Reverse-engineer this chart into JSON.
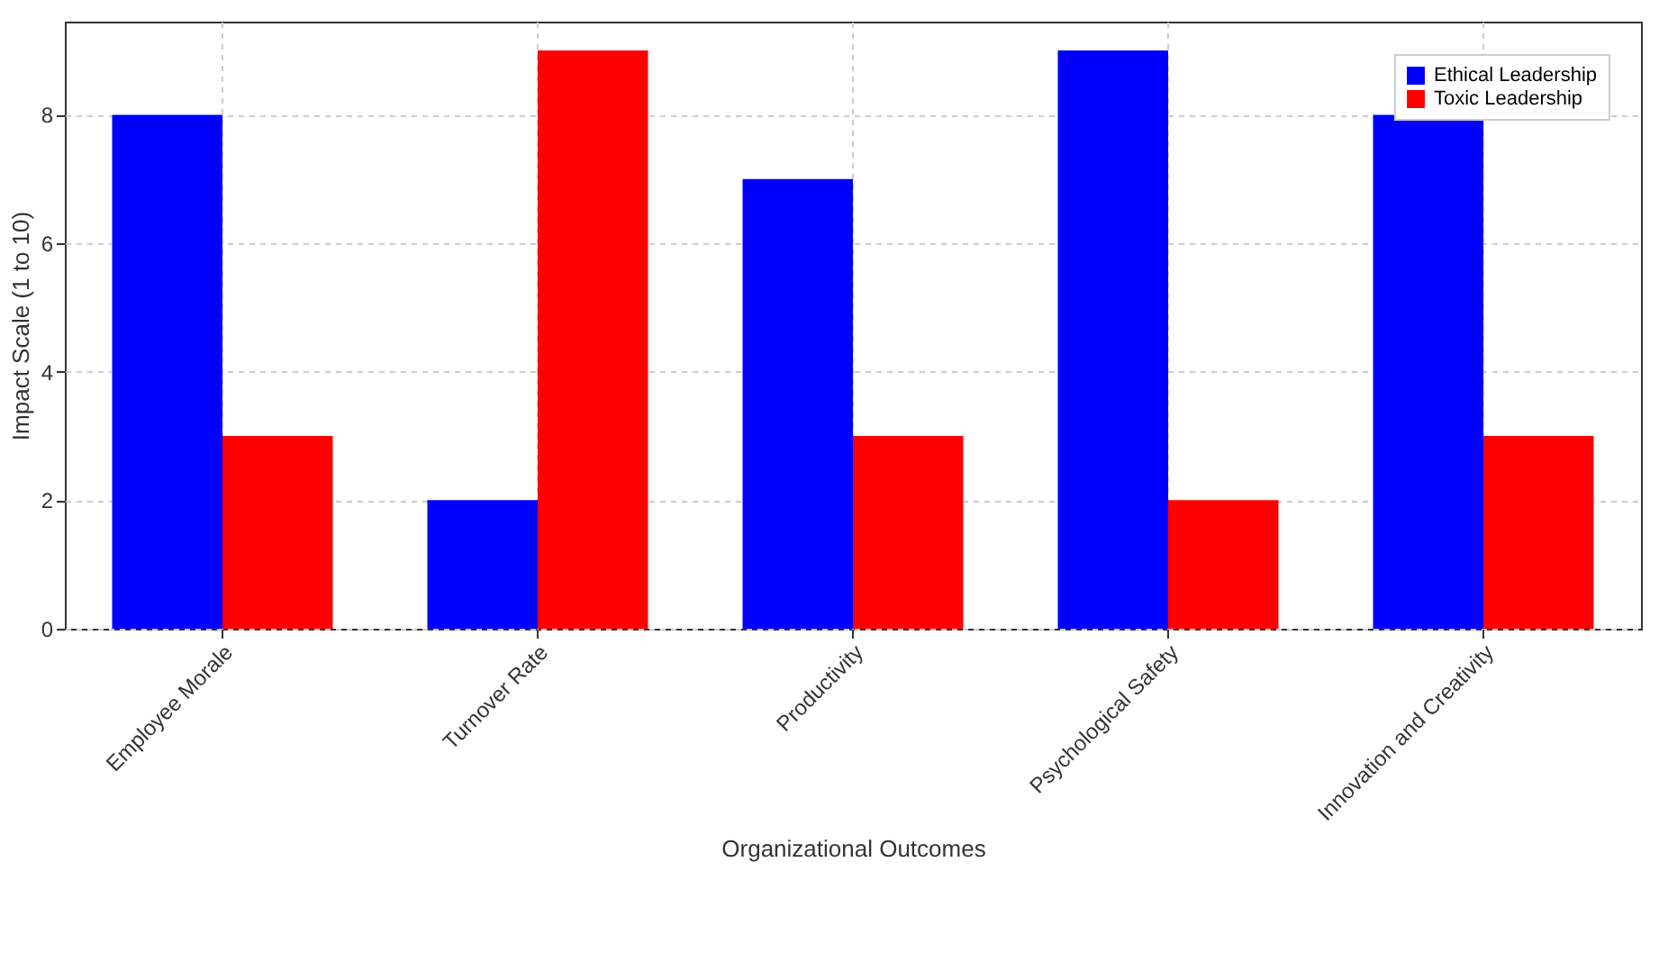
{
  "chart_data": {
    "type": "bar",
    "xlabel": "Organizational Outcomes",
    "ylabel": "Impact Scale (1 to 10)",
    "categories": [
      "Employee Morale",
      "Turnover Rate",
      "Productivity",
      "Psychological Safety",
      "Innovation and Creativity"
    ],
    "series": [
      {
        "name": "Ethical Leadership",
        "color": "#0000ff",
        "values": [
          8,
          2,
          7,
          9,
          8
        ]
      },
      {
        "name": "Toxic Leadership",
        "color": "#ff0000",
        "values": [
          3,
          9,
          3,
          2,
          3
        ]
      }
    ],
    "ylim": [
      0,
      9.45
    ],
    "yticks": [
      0,
      2,
      4,
      6,
      8
    ],
    "grid": true,
    "legend": "top right"
  }
}
